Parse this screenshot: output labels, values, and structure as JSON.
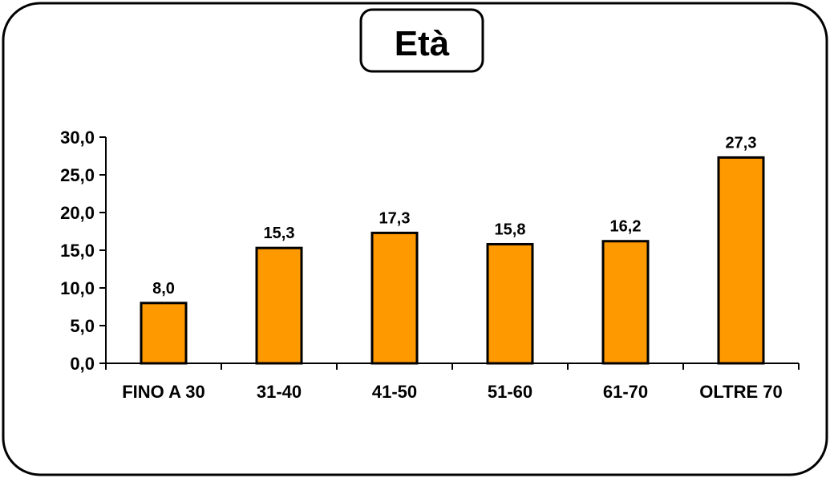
{
  "chart_data": {
    "type": "bar",
    "title": "Età",
    "categories": [
      "FINO A 30",
      "31-40",
      "41-50",
      "51-60",
      "61-70",
      "OLTRE 70"
    ],
    "values": [
      8.0,
      15.3,
      17.3,
      15.8,
      16.2,
      27.3
    ],
    "value_labels": [
      "8,0",
      "15,3",
      "17,3",
      "15,8",
      "16,2",
      "27,3"
    ],
    "yticks": [
      0,
      5,
      10,
      15,
      20,
      25,
      30
    ],
    "ytick_labels": [
      "0,0",
      "5,0",
      "10,0",
      "15,0",
      "20,0",
      "25,0",
      "30,0"
    ],
    "ylim": [
      0,
      30
    ],
    "xlabel": "",
    "ylabel": "",
    "grid": false,
    "colors": {
      "bar": "#FF9900",
      "outline": "#000000",
      "frame": "#000000",
      "background": "#FFFFFF"
    }
  }
}
